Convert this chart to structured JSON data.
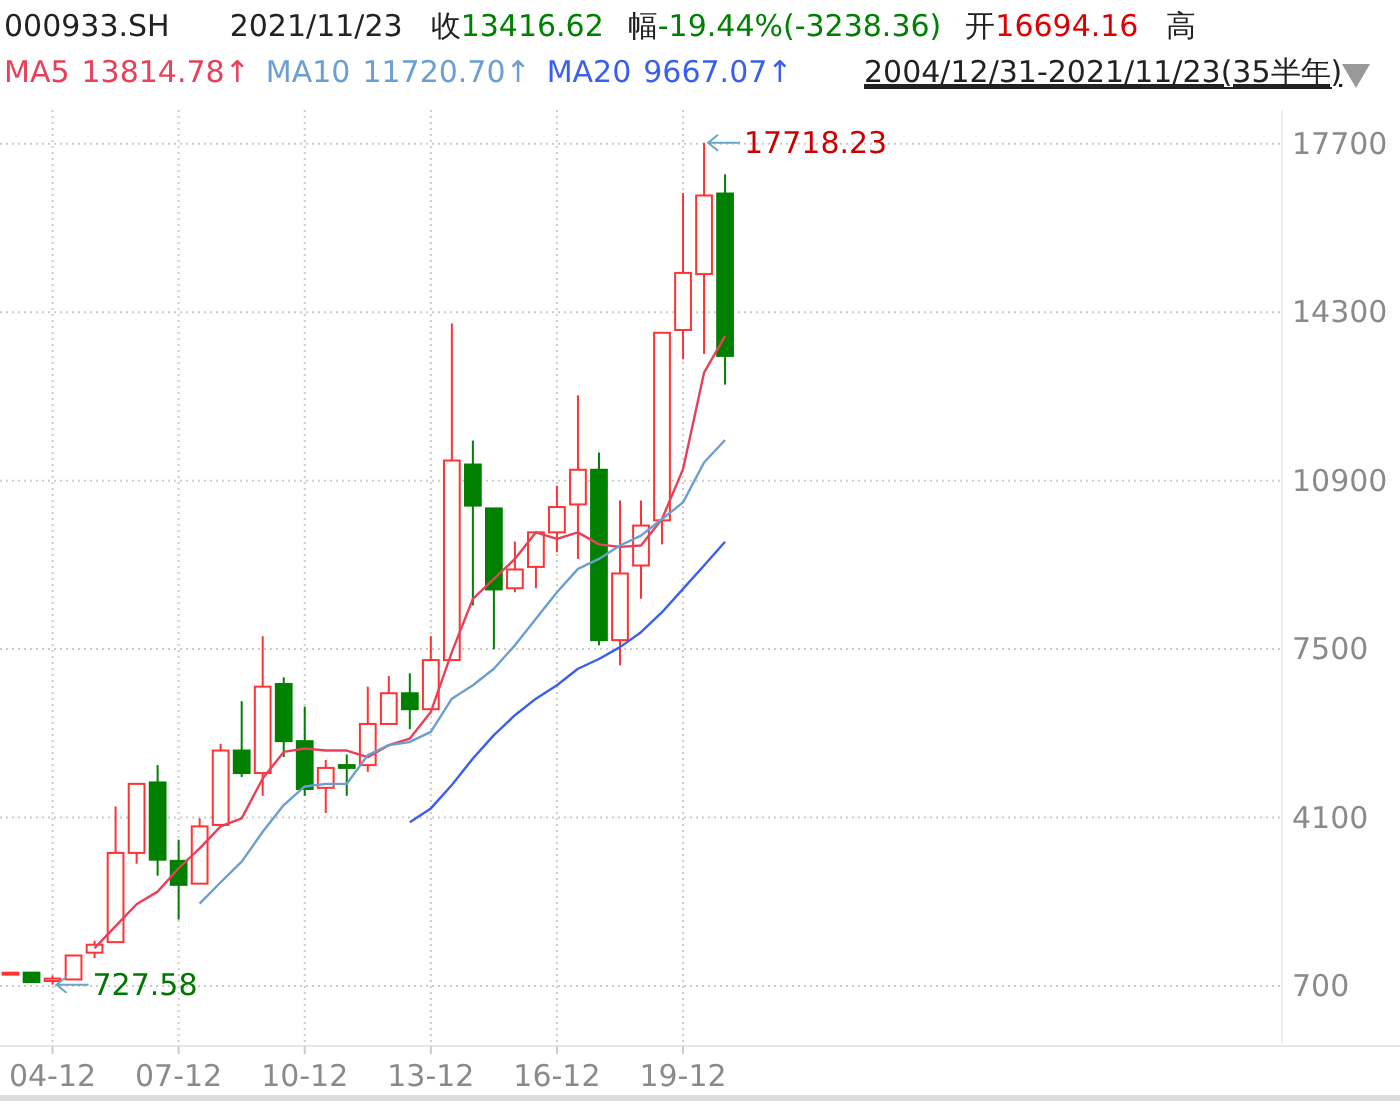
{
  "chart_data": {
    "type": "candlestick",
    "title": "000933.SH",
    "categories": [
      null,
      null,
      "04-12",
      null,
      null,
      null,
      null,
      null,
      "07-12",
      null,
      null,
      null,
      null,
      null,
      "10-12",
      null,
      null,
      null,
      null,
      null,
      "13-12",
      null,
      null,
      null,
      null,
      null,
      "16-12",
      null,
      null,
      null,
      null,
      null,
      "19-12",
      null,
      null,
      null,
      null,
      null,
      null,
      null,
      null,
      null,
      null,
      null,
      null,
      null,
      null,
      null,
      null,
      null,
      null,
      null,
      null,
      null,
      null,
      null,
      null,
      null,
      null,
      null,
      null
    ],
    "ohlc": [
      [
        960,
        980,
        950,
        970
      ],
      [
        970,
        980,
        770,
        780
      ],
      [
        800,
        910,
        727.58,
        850
      ],
      [
        833,
        1316,
        833,
        1316
      ],
      [
        1373,
        1614,
        1264,
        1534
      ],
      [
        1586,
        4325,
        1586,
        3387
      ],
      [
        3387,
        4780,
        3169,
        4780
      ],
      [
        4809,
        5159,
        2927,
        3250
      ],
      [
        3226,
        3653,
        2041,
        2742
      ],
      [
        2766,
        4084,
        2766,
        3922
      ],
      [
        3951,
        5587,
        3951,
        5453
      ],
      [
        5453,
        6448,
        4917,
        4998
      ],
      [
        4998,
        7761,
        4539,
        6742
      ],
      [
        6795,
        6931,
        5320,
        5642
      ],
      [
        5642,
        6339,
        4539,
        4676
      ],
      [
        4700,
        5264,
        4192,
        5102
      ],
      [
        5159,
        5373,
        4539,
        5102
      ],
      [
        5159,
        6742,
        5023,
        5989
      ],
      [
        5989,
        6956,
        5989,
        6609
      ],
      [
        6609,
        7012,
        5884,
        6287
      ],
      [
        6287,
        7761,
        6287,
        7278
      ],
      [
        7278,
        14073,
        7278,
        11306
      ],
      [
        11225,
        11709,
        8381,
        10396
      ],
      [
        10339,
        10339,
        7496,
        8704
      ],
      [
        8728,
        9670,
        8647,
        9107
      ],
      [
        9159,
        9856,
        8728,
        9856
      ],
      [
        9856,
        10798,
        9454,
        10367
      ],
      [
        10420,
        12623,
        9320,
        11119
      ],
      [
        11119,
        11467,
        7576,
        7681
      ],
      [
        7681,
        10500,
        7173,
        9026
      ],
      [
        9187,
        10500,
        8514,
        9993
      ],
      [
        10098,
        13884,
        9614,
        13884
      ],
      [
        13940,
        16703,
        13348,
        15092
      ],
      [
        15068,
        17718.23,
        13457,
        16654.98
      ],
      [
        16694.16,
        17082,
        12837,
        13416.62
      ],
      null,
      null,
      null,
      null,
      null,
      null,
      null,
      null,
      null,
      null,
      null,
      null,
      null,
      null,
      null,
      null,
      null,
      null,
      null,
      null,
      null,
      null,
      null,
      null,
      null,
      null
    ],
    "series": [
      {
        "name": "MA5",
        "type": "line",
        "color": "#e8405a",
        "values": [
          null,
          null,
          null,
          null,
          1465,
          1908,
          2351,
          2605,
          3077,
          3479,
          3922,
          4084,
          4889,
          5425,
          5493,
          5453,
          5453,
          5320,
          5562,
          5695,
          6231,
          7439,
          8514,
          8917,
          9320,
          9856,
          9723,
          9856,
          9614,
          9562,
          9590,
          10125,
          11132,
          13078,
          13814.78,
          null,
          null,
          null,
          null,
          null,
          null,
          null,
          null,
          null,
          null,
          null,
          null,
          null,
          null,
          null,
          null,
          null,
          null,
          null,
          null,
          null,
          null,
          null,
          null,
          null,
          null
        ]
      },
      {
        "name": "MA10",
        "type": "line",
        "color": "#6a9fd0",
        "values": [
          null,
          null,
          null,
          null,
          null,
          null,
          null,
          null,
          null,
          2364,
          2795,
          3210,
          3813,
          4353,
          4728,
          4780,
          4780,
          5360,
          5562,
          5626,
          5828,
          6500,
          6770,
          7104,
          7576,
          8112,
          8647,
          9119,
          9320,
          9590,
          9790,
          10125,
          10460,
          11266,
          11720.7,
          null,
          null,
          null,
          null,
          null,
          null,
          null,
          null,
          null,
          null,
          null,
          null,
          null,
          null,
          null,
          null,
          null,
          null,
          null,
          null,
          null,
          null,
          null,
          null,
          null,
          null
        ]
      },
      {
        "name": "MA20",
        "type": "line",
        "color": "#3a5ef0",
        "values": [
          null,
          null,
          null,
          null,
          null,
          null,
          null,
          null,
          null,
          null,
          null,
          null,
          null,
          null,
          null,
          null,
          null,
          null,
          null,
          4003,
          4285,
          4756,
          5292,
          5763,
          6166,
          6500,
          6770,
          7104,
          7300,
          7540,
          7842,
          8245,
          8716,
          9187,
          9667.07,
          null,
          null,
          null,
          null,
          null,
          null,
          null,
          null,
          null,
          null,
          null,
          null,
          null,
          null,
          null,
          null,
          null,
          null,
          null,
          null,
          null,
          null,
          null,
          null,
          null,
          null
        ]
      }
    ],
    "ylim": [
      -470,
      18380
    ],
    "yticks": [
      700,
      4100,
      7500,
      10900,
      14300,
      17700
    ],
    "grid": true,
    "legend": "top left",
    "annotations": [
      "2021/11/23",
      "收",
      "13416.62",
      "幅",
      "-19.44%(-3238.36)",
      "开",
      "16694.16",
      "高",
      "13814.78↑",
      "11720.70↑",
      "9667.07↑",
      "2004/12/31-2021/11/23(35半年)",
      "17718.23",
      "727.58"
    ]
  }
}
